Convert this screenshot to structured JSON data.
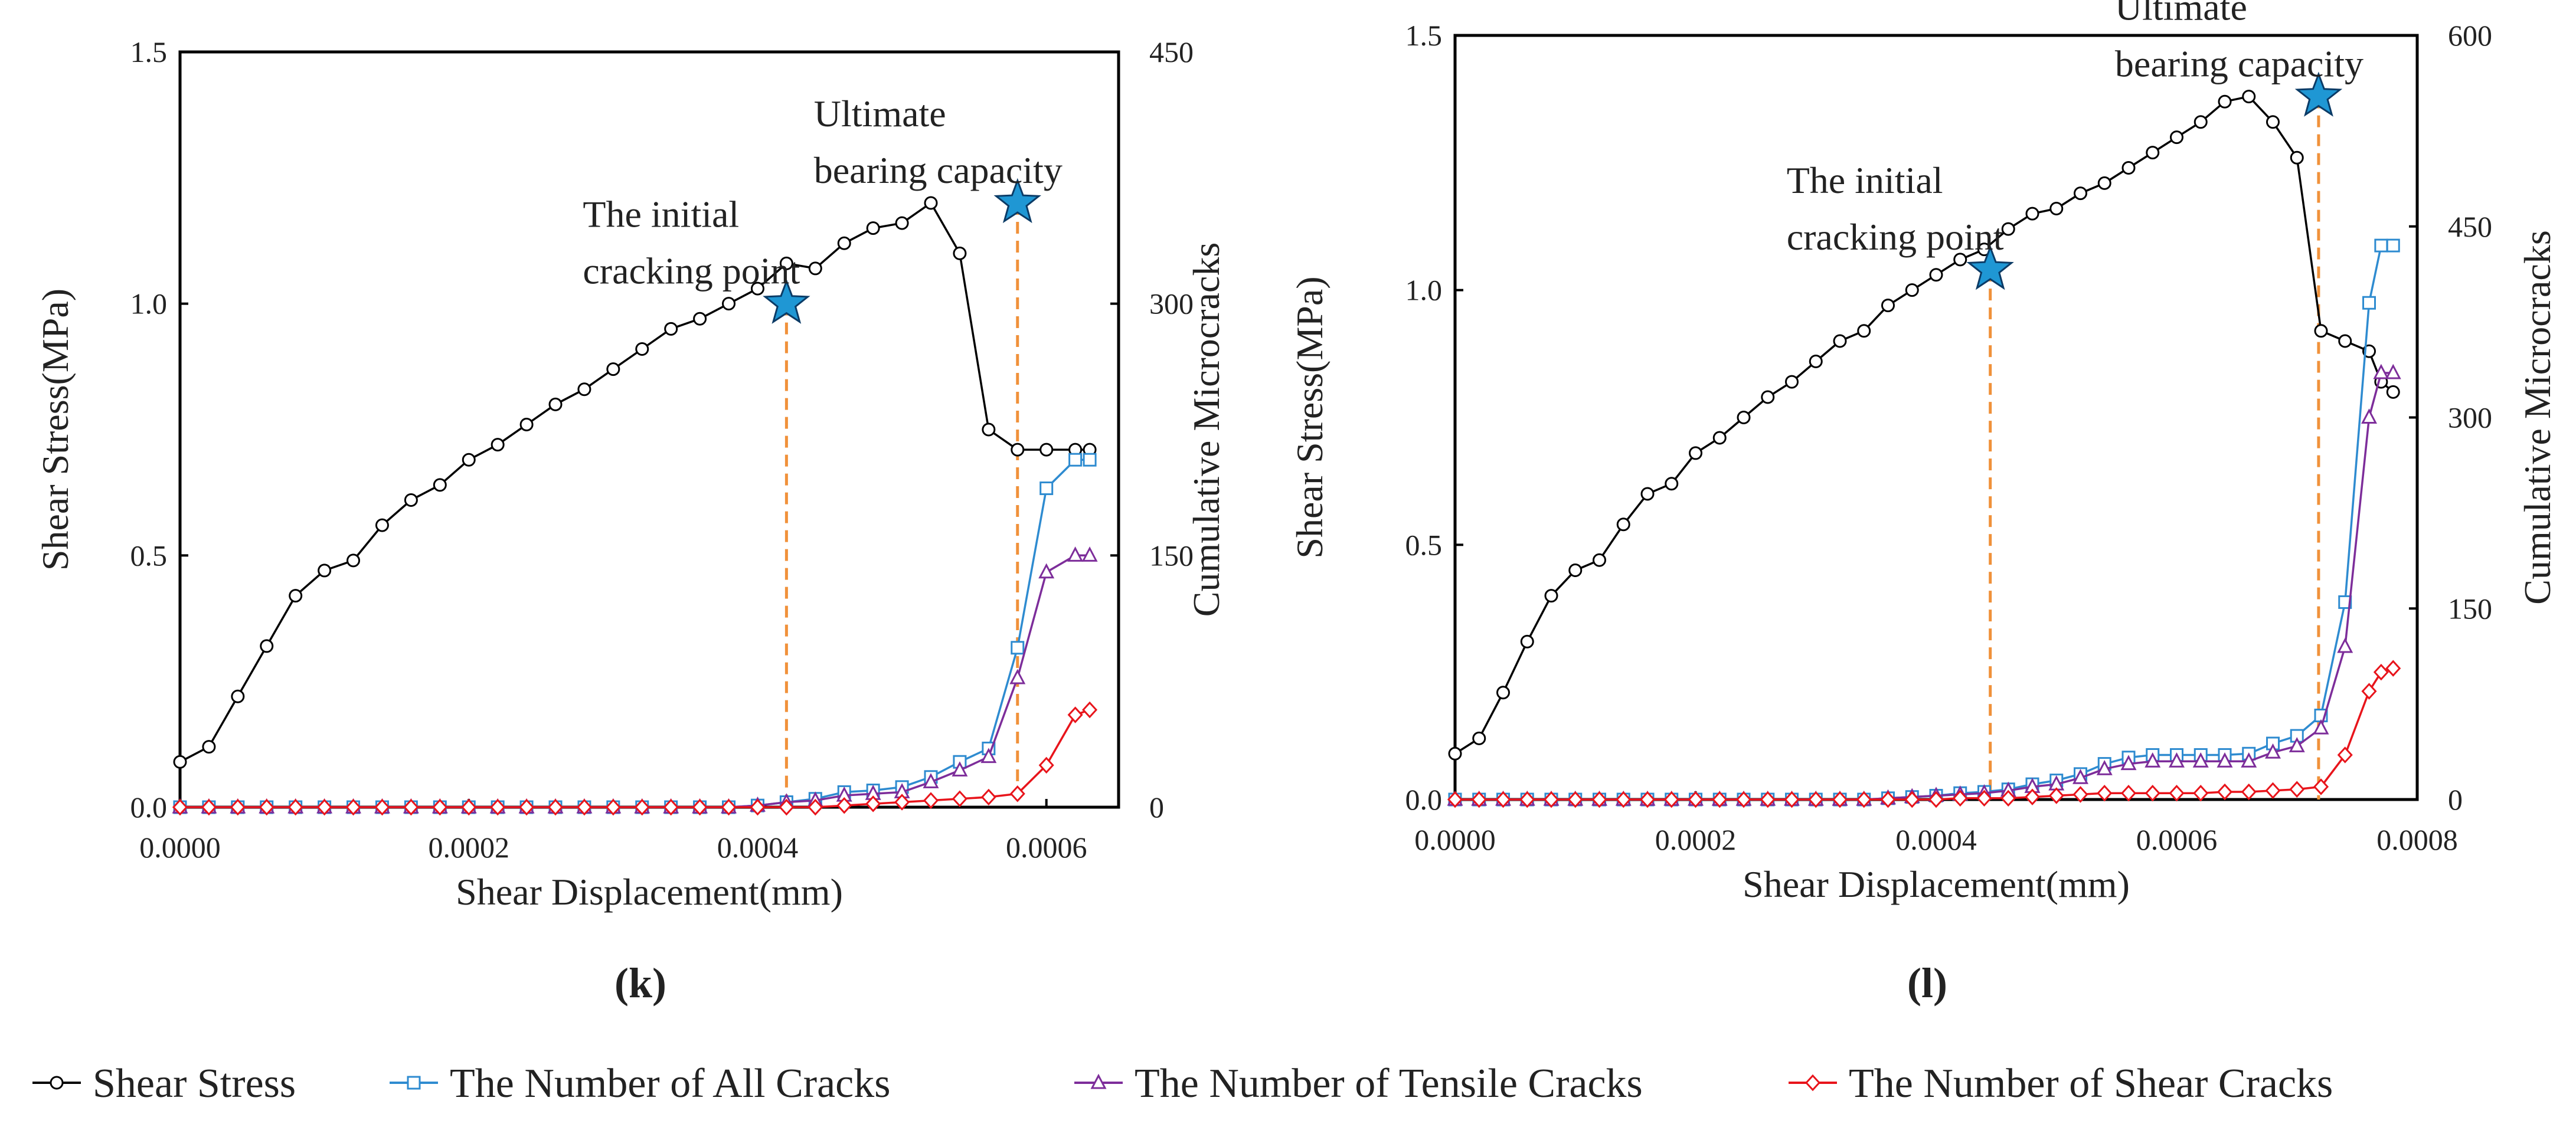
{
  "legend": {
    "items": [
      {
        "label": "Shear Stress",
        "color": "#000000",
        "marker": "circle"
      },
      {
        "label": "The Number of All Cracks",
        "color": "#2e8bd0",
        "marker": "square"
      },
      {
        "label": "The Number of Tensile Cracks",
        "color": "#7d2d9a",
        "marker": "triangle"
      },
      {
        "label": "The Number of Shear Cracks",
        "color": "#e8141b",
        "marker": "diamond"
      }
    ]
  },
  "chart_data": [
    {
      "type": "line",
      "panel_label": "(k)",
      "xlabel": "Shear Displacement(mm)",
      "ylabel": "Shear  Stress(MPa)",
      "y2label": "Cumulative Microcracks",
      "xlim": [
        0,
        0.00065
      ],
      "ylim": [
        0,
        1.5
      ],
      "y2lim": [
        0,
        450
      ],
      "xticks": [
        "0.0000",
        "0.0002",
        "0.0004",
        "0.0006"
      ],
      "xtick_values": [
        0,
        0.0002,
        0.0004,
        0.0006
      ],
      "yticks": [
        "0.0",
        "0.5",
        "1.0",
        "1.5"
      ],
      "ytick_values": [
        0,
        0.5,
        1.0,
        1.5
      ],
      "y2ticks": [
        "0",
        "150",
        "300",
        "450"
      ],
      "y2tick_values": [
        0,
        150,
        300,
        450
      ],
      "grid": false,
      "annotations": [
        {
          "lines": [
            "The initial",
            "cracking point"
          ],
          "x": 0.00042,
          "y": 1.0
        },
        {
          "lines": [
            "Ultimate",
            "bearing capacity"
          ],
          "x": 0.00058,
          "y": 1.2
        }
      ],
      "series": [
        {
          "name": "Shear Stress",
          "axis": "left",
          "x": [
            0,
            2e-05,
            4e-05,
            6e-05,
            8e-05,
            0.0001,
            0.00012,
            0.00014,
            0.00016,
            0.00018,
            0.0002,
            0.00022,
            0.00024,
            0.00026,
            0.00028,
            0.0003,
            0.00032,
            0.00034,
            0.00036,
            0.00038,
            0.0004,
            0.00042,
            0.00044,
            0.00046,
            0.00048,
            0.0005,
            0.00052,
            0.00054,
            0.00056,
            0.00058,
            0.0006,
            0.00062,
            0.00063
          ],
          "y": [
            0.09,
            0.12,
            0.22,
            0.32,
            0.42,
            0.47,
            0.49,
            0.56,
            0.61,
            0.64,
            0.69,
            0.72,
            0.76,
            0.8,
            0.83,
            0.87,
            0.91,
            0.95,
            0.97,
            1.0,
            1.03,
            1.08,
            1.07,
            1.12,
            1.15,
            1.16,
            1.2,
            1.1,
            0.75,
            0.71,
            0.71,
            0.71,
            0.71
          ]
        },
        {
          "name": "The Number of All Cracks",
          "axis": "right",
          "x": [
            0,
            2e-05,
            4e-05,
            6e-05,
            8e-05,
            0.0001,
            0.00012,
            0.00014,
            0.00016,
            0.00018,
            0.0002,
            0.00022,
            0.00024,
            0.00026,
            0.00028,
            0.0003,
            0.00032,
            0.00034,
            0.00036,
            0.00038,
            0.0004,
            0.00042,
            0.00044,
            0.00046,
            0.00048,
            0.0005,
            0.00052,
            0.00054,
            0.00056,
            0.00058,
            0.0006,
            0.00062,
            0.00063
          ],
          "y": [
            0,
            0,
            0,
            0,
            0,
            0,
            0,
            0,
            0,
            0,
            0,
            0,
            0,
            0,
            0,
            0,
            0,
            0,
            0,
            0,
            1,
            3,
            5,
            9,
            10,
            12,
            18,
            27,
            35,
            95,
            190,
            207,
            207
          ]
        },
        {
          "name": "The Number of Tensile Cracks",
          "axis": "right",
          "x": [
            0,
            2e-05,
            4e-05,
            6e-05,
            8e-05,
            0.0001,
            0.00012,
            0.00014,
            0.00016,
            0.00018,
            0.0002,
            0.00022,
            0.00024,
            0.00026,
            0.00028,
            0.0003,
            0.00032,
            0.00034,
            0.00036,
            0.00038,
            0.0004,
            0.00042,
            0.00044,
            0.00046,
            0.00048,
            0.0005,
            0.00052,
            0.00054,
            0.00056,
            0.00058,
            0.0006,
            0.00062,
            0.00063
          ],
          "y": [
            0,
            0,
            0,
            0,
            0,
            0,
            0,
            0,
            0,
            0,
            0,
            0,
            0,
            0,
            0,
            0,
            0,
            0,
            0,
            0,
            1,
            3,
            4,
            7,
            8,
            9,
            15,
            22,
            30,
            77,
            140,
            150,
            150
          ]
        },
        {
          "name": "The Number of Shear Cracks",
          "axis": "right",
          "x": [
            0,
            2e-05,
            4e-05,
            6e-05,
            8e-05,
            0.0001,
            0.00012,
            0.00014,
            0.00016,
            0.00018,
            0.0002,
            0.00022,
            0.00024,
            0.00026,
            0.00028,
            0.0003,
            0.00032,
            0.00034,
            0.00036,
            0.00038,
            0.0004,
            0.00042,
            0.00044,
            0.00046,
            0.00048,
            0.0005,
            0.00052,
            0.00054,
            0.00056,
            0.00058,
            0.0006,
            0.00062,
            0.00063
          ],
          "y": [
            0,
            0,
            0,
            0,
            0,
            0,
            0,
            0,
            0,
            0,
            0,
            0,
            0,
            0,
            0,
            0,
            0,
            0,
            0,
            0,
            0,
            0,
            0,
            1,
            2,
            3,
            4,
            5,
            6,
            8,
            25,
            55,
            58
          ]
        }
      ]
    },
    {
      "type": "line",
      "panel_label": "(l)",
      "xlabel": "Shear Displacement(mm)",
      "ylabel": "Shear  Stress(MPa)",
      "y2label": "Cumulative Microcracks",
      "xlim": [
        0,
        0.0008
      ],
      "ylim": [
        0,
        1.5
      ],
      "y2lim": [
        0,
        600
      ],
      "xticks": [
        "0.0000",
        "0.0002",
        "0.0004",
        "0.0006",
        "0.0008"
      ],
      "xtick_values": [
        0,
        0.0002,
        0.0004,
        0.0006,
        0.0008
      ],
      "yticks": [
        "0.0",
        "0.5",
        "1.0",
        "1.5"
      ],
      "ytick_values": [
        0,
        0.5,
        1.0,
        1.5
      ],
      "y2ticks": [
        "0",
        "150",
        "300",
        "450",
        "600"
      ],
      "y2tick_values": [
        0,
        150,
        300,
        450,
        600
      ],
      "grid": false,
      "annotations": [
        {
          "lines": [
            "The initial",
            "cracking point"
          ],
          "x": 0.000445,
          "y": 1.04
        },
        {
          "lines": [
            "Ultimate",
            "bearing capacity"
          ],
          "x": 0.000718,
          "y": 1.38
        }
      ],
      "series": [
        {
          "name": "Shear Stress",
          "axis": "left",
          "x": [
            0,
            2e-05,
            4e-05,
            6e-05,
            8e-05,
            0.0001,
            0.00012,
            0.00014,
            0.00016,
            0.00018,
            0.0002,
            0.00022,
            0.00024,
            0.00026,
            0.00028,
            0.0003,
            0.00032,
            0.00034,
            0.00036,
            0.00038,
            0.0004,
            0.00042,
            0.00044,
            0.00046,
            0.00048,
            0.0005,
            0.00052,
            0.00054,
            0.00056,
            0.00058,
            0.0006,
            0.00062,
            0.00064,
            0.00066,
            0.00068,
            0.0007,
            0.00072,
            0.00074,
            0.00076,
            0.00077,
            0.00078
          ],
          "y": [
            0.09,
            0.12,
            0.21,
            0.31,
            0.4,
            0.45,
            0.47,
            0.54,
            0.6,
            0.62,
            0.68,
            0.71,
            0.75,
            0.79,
            0.82,
            0.86,
            0.9,
            0.92,
            0.97,
            1.0,
            1.03,
            1.06,
            1.08,
            1.12,
            1.15,
            1.16,
            1.19,
            1.21,
            1.24,
            1.27,
            1.3,
            1.33,
            1.37,
            1.38,
            1.33,
            1.26,
            0.92,
            0.9,
            0.88,
            0.82,
            0.8
          ]
        },
        {
          "name": "The Number of All Cracks",
          "axis": "right",
          "x": [
            0,
            2e-05,
            4e-05,
            6e-05,
            8e-05,
            0.0001,
            0.00012,
            0.00014,
            0.00016,
            0.00018,
            0.0002,
            0.00022,
            0.00024,
            0.00026,
            0.00028,
            0.0003,
            0.00032,
            0.00034,
            0.00036,
            0.00038,
            0.0004,
            0.00042,
            0.00044,
            0.00046,
            0.00048,
            0.0005,
            0.00052,
            0.00054,
            0.00056,
            0.00058,
            0.0006,
            0.00062,
            0.00064,
            0.00066,
            0.00068,
            0.0007,
            0.00072,
            0.00074,
            0.00076,
            0.00077,
            0.00078
          ],
          "y": [
            0,
            0,
            0,
            0,
            0,
            0,
            0,
            0,
            0,
            0,
            0,
            0,
            0,
            0,
            0,
            0,
            0,
            0,
            1,
            2,
            3,
            5,
            6,
            8,
            12,
            15,
            20,
            28,
            33,
            35,
            35,
            35,
            35,
            36,
            44,
            50,
            66,
            155,
            390,
            435,
            435
          ]
        },
        {
          "name": "The Number of Tensile Cracks",
          "axis": "right",
          "x": [
            0,
            2e-05,
            4e-05,
            6e-05,
            8e-05,
            0.0001,
            0.00012,
            0.00014,
            0.00016,
            0.00018,
            0.0002,
            0.00022,
            0.00024,
            0.00026,
            0.00028,
            0.0003,
            0.00032,
            0.00034,
            0.00036,
            0.00038,
            0.0004,
            0.00042,
            0.00044,
            0.00046,
            0.00048,
            0.0005,
            0.00052,
            0.00054,
            0.00056,
            0.00058,
            0.0006,
            0.00062,
            0.00064,
            0.00066,
            0.00068,
            0.0007,
            0.00072,
            0.00074,
            0.00076,
            0.00077,
            0.00078
          ],
          "y": [
            0,
            0,
            0,
            0,
            0,
            0,
            0,
            0,
            0,
            0,
            0,
            0,
            0,
            0,
            0,
            0,
            0,
            0,
            1,
            2,
            3,
            4,
            5,
            7,
            10,
            12,
            17,
            24,
            28,
            30,
            30,
            30,
            30,
            30,
            37,
            42,
            56,
            120,
            300,
            335,
            335
          ]
        },
        {
          "name": "The Number of Shear Cracks",
          "axis": "right",
          "x": [
            0,
            2e-05,
            4e-05,
            6e-05,
            8e-05,
            0.0001,
            0.00012,
            0.00014,
            0.00016,
            0.00018,
            0.0002,
            0.00022,
            0.00024,
            0.00026,
            0.00028,
            0.0003,
            0.00032,
            0.00034,
            0.00036,
            0.00038,
            0.0004,
            0.00042,
            0.00044,
            0.00046,
            0.00048,
            0.0005,
            0.00052,
            0.00054,
            0.00056,
            0.00058,
            0.0006,
            0.00062,
            0.00064,
            0.00066,
            0.00068,
            0.0007,
            0.00072,
            0.00074,
            0.00076,
            0.00077,
            0.00078
          ],
          "y": [
            0,
            0,
            0,
            0,
            0,
            0,
            0,
            0,
            0,
            0,
            0,
            0,
            0,
            0,
            0,
            0,
            0,
            0,
            0,
            0,
            0,
            1,
            1,
            1,
            2,
            3,
            4,
            5,
            5,
            5,
            5,
            5,
            6,
            6,
            7,
            8,
            10,
            35,
            85,
            100,
            103
          ]
        }
      ]
    }
  ]
}
